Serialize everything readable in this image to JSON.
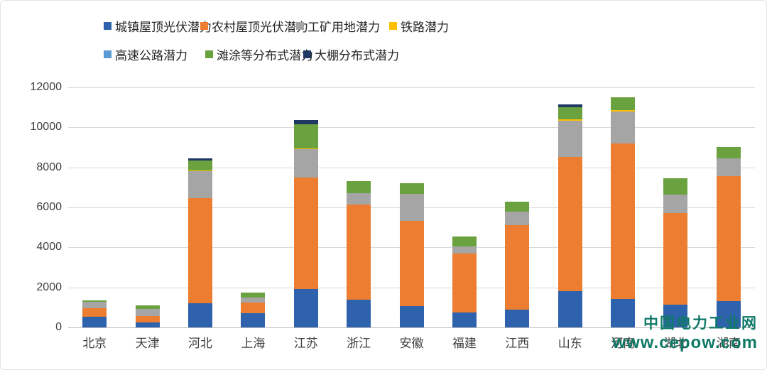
{
  "watermark": {
    "line1": "中国电力工业网",
    "line2": "www.cepow.com",
    "color": "#107A68"
  },
  "chart_data": {
    "type": "bar",
    "stacked": true,
    "title": "",
    "xlabel": "",
    "ylabel": "",
    "grid": true,
    "legend_position": "top",
    "ylim": [
      0,
      12000
    ],
    "y_ticks": [
      0,
      2000,
      4000,
      6000,
      8000,
      10000,
      12000
    ],
    "y_tick_labels": [
      "0",
      "2000",
      "4000",
      "6000",
      "8000",
      "10000",
      "12000"
    ],
    "categories": [
      "北京",
      "天津",
      "河北",
      "上海",
      "江苏",
      "浙江",
      "安徽",
      "福建",
      "江西",
      "山东",
      "河南",
      "湖北",
      "湖南"
    ],
    "series": [
      {
        "name": "城镇屋顶光伏潜力",
        "color": "#2E62AC",
        "values": [
          550,
          250,
          1200,
          720,
          1900,
          1390,
          1070,
          750,
          890,
          1820,
          1430,
          1140,
          1320
        ]
      },
      {
        "name": "农村屋顶光伏潜力",
        "color": "#ED7D31",
        "values": [
          400,
          320,
          5250,
          530,
          5600,
          4750,
          4250,
          2930,
          4210,
          6710,
          7780,
          4570,
          6250
        ]
      },
      {
        "name": "工矿用地潜力",
        "color": "#A5A5A5",
        "values": [
          330,
          350,
          1350,
          250,
          1400,
          570,
          1350,
          360,
          680,
          1820,
          1600,
          930,
          890
        ]
      },
      {
        "name": "铁路潜力",
        "color": "#FFC000",
        "values": [
          0,
          0,
          40,
          0,
          60,
          0,
          0,
          0,
          0,
          50,
          70,
          0,
          0
        ]
      },
      {
        "name": "高速公路潜力",
        "color": "#5B9BD5",
        "values": [
          0,
          0,
          0,
          0,
          0,
          0,
          0,
          0,
          0,
          0,
          0,
          0,
          0
        ]
      },
      {
        "name": "滩涂等分布式潜力",
        "color": "#6AA23F",
        "values": [
          60,
          180,
          500,
          230,
          1200,
          600,
          540,
          500,
          500,
          600,
          620,
          830,
          570
        ]
      },
      {
        "name": "大棚分布式潜力",
        "color": "#1F3864",
        "values": [
          0,
          0,
          100,
          0,
          200,
          0,
          0,
          0,
          0,
          150,
          0,
          0,
          0
        ]
      }
    ],
    "totals": [
      1340,
      1100,
      8440,
      1730,
      10360,
      7310,
      7210,
      4540,
      6280,
      11150,
      11500,
      7470,
      9030
    ]
  }
}
